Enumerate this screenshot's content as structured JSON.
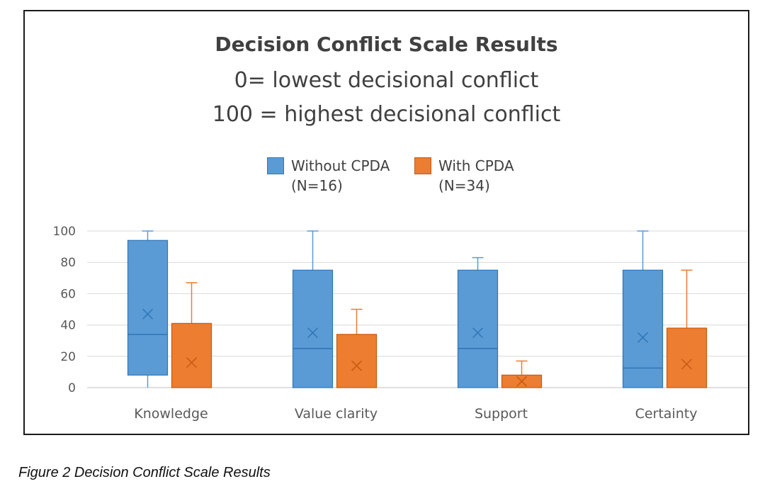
{
  "chart_data": {
    "type": "box",
    "title": "Decision Conflict Scale Results",
    "subtitle": [
      "0= lowest decisional conflict",
      "100 = highest decisional conflict"
    ],
    "categories": [
      "Knowledge",
      "Value clarity",
      "Support",
      "Certainty"
    ],
    "ylim": [
      0,
      100
    ],
    "yticks": [
      0,
      20,
      40,
      60,
      80,
      100
    ],
    "grid": true,
    "legend_position": "top-center",
    "series": [
      {
        "name": "Without CPDA\n(N=16)",
        "color": "#5b9bd5",
        "edge": "#2e75b6",
        "boxes": [
          {
            "min": 0,
            "q1": 8,
            "median": 34,
            "q3": 94,
            "max": 100,
            "mean": 47
          },
          {
            "min": 0,
            "q1": 0,
            "median": 25,
            "q3": 75,
            "max": 100,
            "mean": 35
          },
          {
            "min": 0,
            "q1": 0,
            "median": 25,
            "q3": 75,
            "max": 83,
            "mean": 35
          },
          {
            "min": 0,
            "q1": 0,
            "median": 12.5,
            "q3": 75,
            "max": 100,
            "mean": 32
          }
        ]
      },
      {
        "name": "With CPDA\n(N=34)",
        "color": "#ed7d31",
        "edge": "#c55a11",
        "boxes": [
          {
            "min": 0,
            "q1": 0,
            "median": 0,
            "q3": 41,
            "max": 67,
            "mean": 16
          },
          {
            "min": 0,
            "q1": 0,
            "median": 0,
            "q3": 34,
            "max": 50,
            "mean": 14
          },
          {
            "min": 0,
            "q1": 0,
            "median": 0,
            "q3": 8,
            "max": 17,
            "mean": 4
          },
          {
            "min": 0,
            "q1": 0,
            "median": 0,
            "q3": 38,
            "max": 75,
            "mean": 15
          }
        ]
      }
    ]
  },
  "caption": "Figure 2 Decision Conflict Scale Results"
}
